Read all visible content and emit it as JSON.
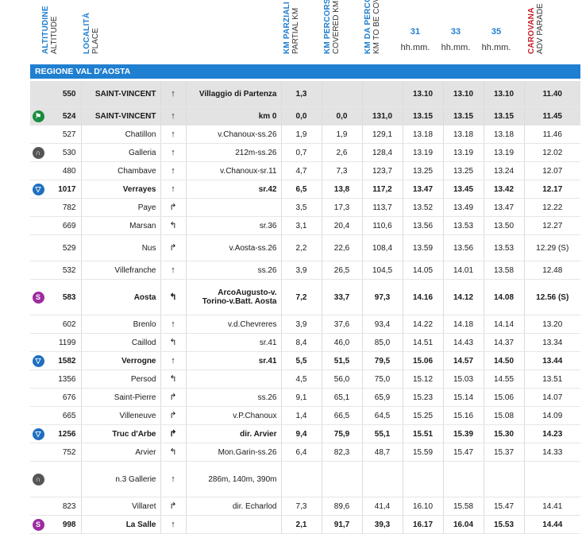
{
  "headers": {
    "altitude": {
      "it": "ALTITUDINE",
      "en": "ALTITUDE"
    },
    "place": {
      "it": "LOCALITÀ",
      "en": "PLACE"
    },
    "partial_km": {
      "it": "KM PARZIALI",
      "en": "PARTIAL KM"
    },
    "covered_km": {
      "it": "KM PERCORSI",
      "en": "COVERED KM"
    },
    "km_to_go": {
      "it": "KM DA PERCORRERE",
      "en": "KM TO BE COVERED"
    },
    "caravan": {
      "it": "CAROVANA",
      "en": "ADV PARADE"
    },
    "speeds": [
      {
        "value": "31",
        "unit": "hh.mm."
      },
      {
        "value": "33",
        "unit": "hh.mm."
      },
      {
        "value": "35",
        "unit": "hh.mm."
      }
    ]
  },
  "region": "REGIONE VAL D'AOSTA",
  "rows": [
    {
      "icon": "",
      "alt": "550",
      "place": "SAINT-VINCENT",
      "arrow": "↑",
      "info": "Villaggio di Partenza",
      "partial": "1,3",
      "covered": "",
      "togo": "",
      "t31": "13.10",
      "t33": "13.10",
      "t35": "13.10",
      "car": "11.40",
      "bold": true,
      "shade": true,
      "tall": true
    },
    {
      "icon": "start",
      "alt": "524",
      "place": "SAINT-VINCENT",
      "arrow": "↑",
      "info": "km 0",
      "partial": "0,0",
      "covered": "0,0",
      "togo": "131,0",
      "t31": "13.15",
      "t33": "13.15",
      "t35": "13.15",
      "car": "11.45",
      "bold": true,
      "shade": true
    },
    {
      "icon": "",
      "alt": "527",
      "place": "Chatillon",
      "arrow": "↑",
      "info": "v.Chanoux-ss.26",
      "partial": "1,9",
      "covered": "1,9",
      "togo": "129,1",
      "t31": "13.18",
      "t33": "13.18",
      "t35": "13.18",
      "car": "11.46"
    },
    {
      "icon": "tunnel",
      "alt": "530",
      "place": "Galleria",
      "arrow": "↑",
      "info": "212m-ss.26",
      "partial": "0,7",
      "covered": "2,6",
      "togo": "128,4",
      "t31": "13.19",
      "t33": "13.19",
      "t35": "13.19",
      "car": "12.02"
    },
    {
      "icon": "",
      "alt": "480",
      "place": "Chambave",
      "arrow": "↑",
      "info": "v.Chanoux-sr.11",
      "partial": "4,7",
      "covered": "7,3",
      "togo": "123,7",
      "t31": "13.25",
      "t33": "13.25",
      "t35": "13.24",
      "car": "12.07"
    },
    {
      "icon": "gpm",
      "alt": "1017",
      "place": "Verrayes",
      "arrow": "↑",
      "info": "sr.42",
      "partial": "6,5",
      "covered": "13,8",
      "togo": "117,2",
      "t31": "13.47",
      "t33": "13.45",
      "t35": "13.42",
      "car": "12.17",
      "bold": true
    },
    {
      "icon": "",
      "alt": "782",
      "place": "Paye",
      "arrow": "↱",
      "info": "",
      "partial": "3,5",
      "covered": "17,3",
      "togo": "113,7",
      "t31": "13.52",
      "t33": "13.49",
      "t35": "13.47",
      "car": "12.22"
    },
    {
      "icon": "",
      "alt": "669",
      "place": "Marsan",
      "arrow": "↰",
      "info": "sr.36",
      "partial": "3,1",
      "covered": "20,4",
      "togo": "110,6",
      "t31": "13.56",
      "t33": "13.53",
      "t35": "13.50",
      "car": "12.27"
    },
    {
      "icon": "",
      "alt": "529",
      "place": "Nus",
      "arrow": "↱",
      "info": "v.Aosta-ss.26",
      "partial": "2,2",
      "covered": "22,6",
      "togo": "108,4",
      "t31": "13.59",
      "t33": "13.56",
      "t35": "13.53",
      "car": "12.29 (S)",
      "tall": true
    },
    {
      "icon": "",
      "alt": "532",
      "place": "Villefranche",
      "arrow": "↑",
      "info": "ss.26",
      "partial": "3,9",
      "covered": "26,5",
      "togo": "104,5",
      "t31": "14.05",
      "t33": "14.01",
      "t35": "13.58",
      "car": "12.48"
    },
    {
      "icon": "sprint",
      "alt": "583",
      "place": "Aosta",
      "arrow": "↰",
      "info": "ArcoAugusto-v. Torino-v.Batt. Aosta",
      "partial": "7,2",
      "covered": "33,7",
      "togo": "97,3",
      "t31": "14.16",
      "t33": "14.12",
      "t35": "14.08",
      "car": "12.56 (S)",
      "bold": true,
      "tall2": true
    },
    {
      "icon": "",
      "alt": "602",
      "place": "Brenlo",
      "arrow": "↑",
      "info": "v.d.Chevreres",
      "partial": "3,9",
      "covered": "37,6",
      "togo": "93,4",
      "t31": "14.22",
      "t33": "14.18",
      "t35": "14.14",
      "car": "13.20"
    },
    {
      "icon": "",
      "alt": "1199",
      "place": "Caillod",
      "arrow": "↰",
      "info": "sr.41",
      "partial": "8,4",
      "covered": "46,0",
      "togo": "85,0",
      "t31": "14.51",
      "t33": "14.43",
      "t35": "14.37",
      "car": "13.34"
    },
    {
      "icon": "gpm",
      "alt": "1582",
      "place": "Verrogne",
      "arrow": "↑",
      "info": "sr.41",
      "partial": "5,5",
      "covered": "51,5",
      "togo": "79,5",
      "t31": "15.06",
      "t33": "14.57",
      "t35": "14.50",
      "car": "13.44",
      "bold": true
    },
    {
      "icon": "",
      "alt": "1356",
      "place": "Persod",
      "arrow": "↰",
      "info": "",
      "partial": "4,5",
      "covered": "56,0",
      "togo": "75,0",
      "t31": "15.12",
      "t33": "15.03",
      "t35": "14.55",
      "car": "13.51"
    },
    {
      "icon": "",
      "alt": "676",
      "place": "Saint-Pierre",
      "arrow": "↱",
      "info": "ss.26",
      "partial": "9,1",
      "covered": "65,1",
      "togo": "65,9",
      "t31": "15.23",
      "t33": "15.14",
      "t35": "15.06",
      "car": "14.07"
    },
    {
      "icon": "",
      "alt": "665",
      "place": "Villeneuve",
      "arrow": "↱",
      "info": "v.P.Chanoux",
      "partial": "1,4",
      "covered": "66,5",
      "togo": "64,5",
      "t31": "15.25",
      "t33": "15.16",
      "t35": "15.08",
      "car": "14.09"
    },
    {
      "icon": "gpm",
      "alt": "1256",
      "place": "Truc d'Arbe",
      "arrow": "↱",
      "info": "dir. Arvier",
      "partial": "9,4",
      "covered": "75,9",
      "togo": "55,1",
      "t31": "15.51",
      "t33": "15.39",
      "t35": "15.30",
      "car": "14.23",
      "bold": true
    },
    {
      "icon": "",
      "alt": "752",
      "place": "Arvier",
      "arrow": "↰",
      "info": "Mon.Garin-ss.26",
      "partial": "6,4",
      "covered": "82,3",
      "togo": "48,7",
      "t31": "15.59",
      "t33": "15.47",
      "t35": "15.37",
      "car": "14.33"
    },
    {
      "icon": "tunnel",
      "alt": "",
      "place": "n.3 Gallerie",
      "arrow": "↑",
      "info": "286m, 140m, 390m",
      "partial": "",
      "covered": "",
      "togo": "",
      "t31": "",
      "t33": "",
      "t35": "",
      "car": "",
      "tall2": true
    },
    {
      "icon": "",
      "alt": "823",
      "place": "Villaret",
      "arrow": "↱",
      "info": "dir. Echarlod",
      "partial": "7,3",
      "covered": "89,6",
      "togo": "41,4",
      "t31": "16.10",
      "t33": "15.58",
      "t35": "15.47",
      "car": "14.41"
    },
    {
      "icon": "sprint",
      "alt": "998",
      "place": "La Salle",
      "arrow": "↑",
      "info": "",
      "partial": "2,1",
      "covered": "91,7",
      "togo": "39,3",
      "t31": "16.17",
      "t33": "16.04",
      "t35": "15.53",
      "car": "14.44",
      "bold": true
    }
  ]
}
